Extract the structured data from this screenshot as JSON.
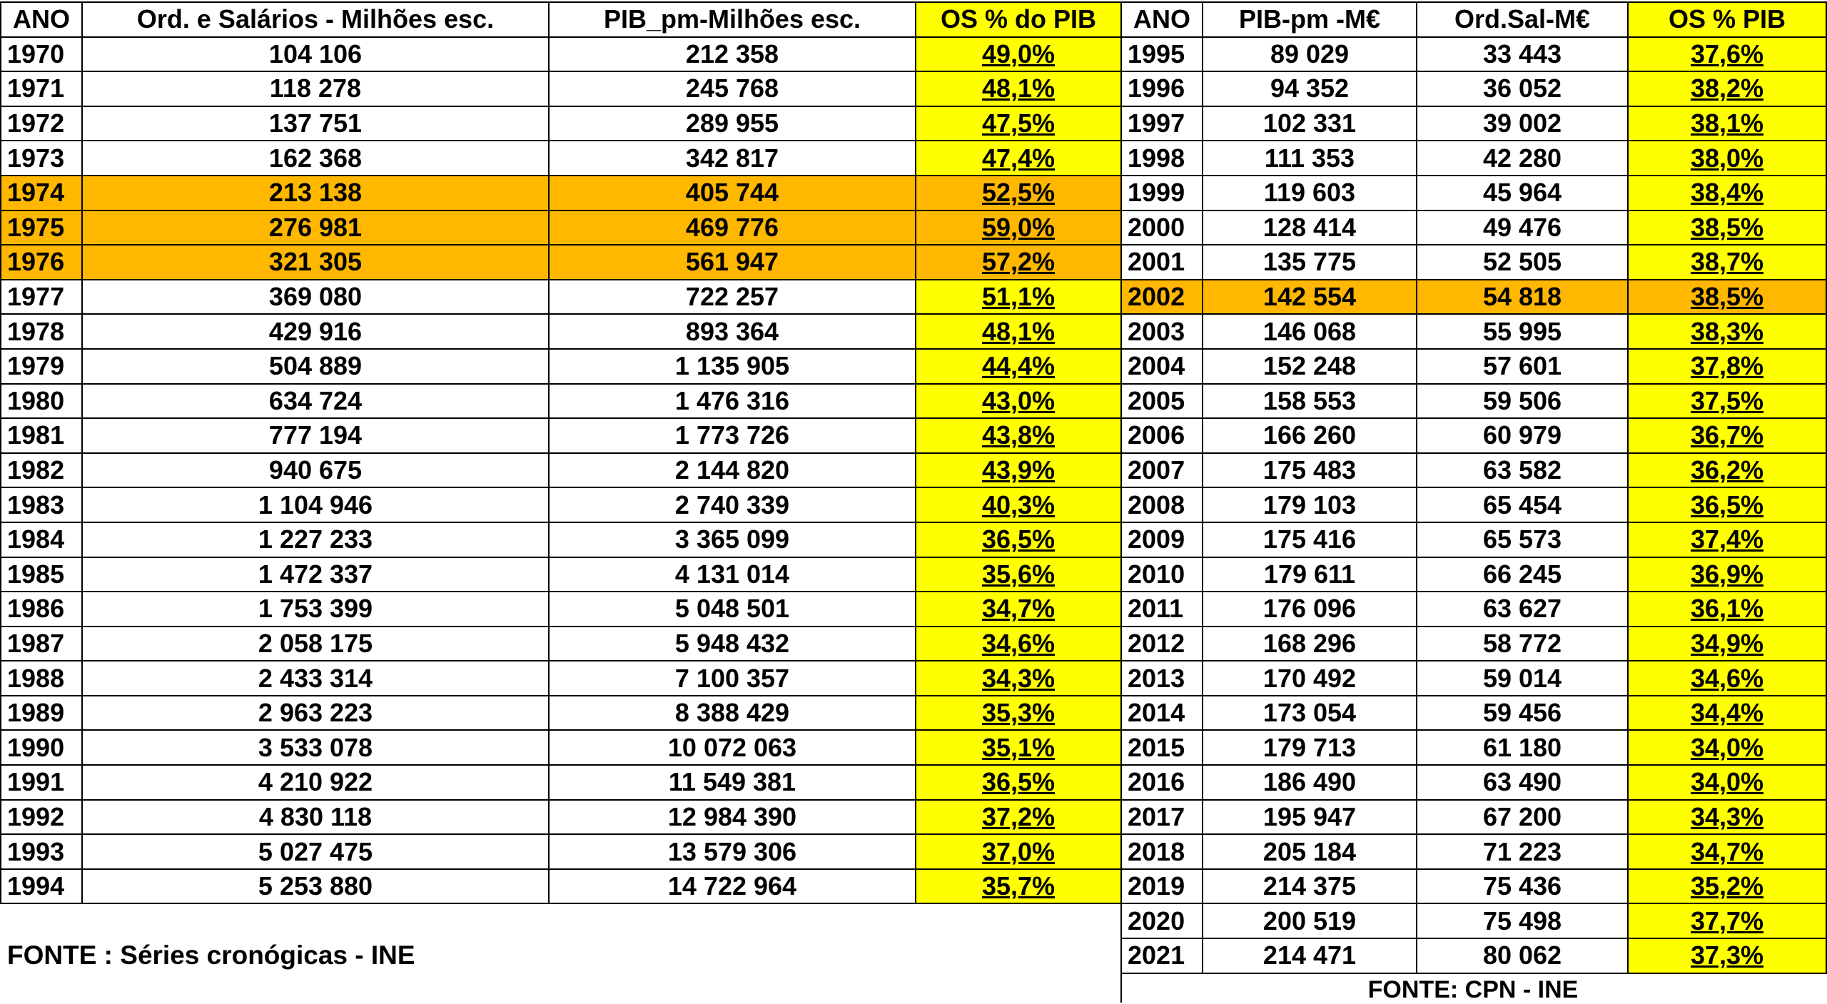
{
  "left": {
    "headers": [
      "ANO",
      "Ord. e Salários - Milhões esc.",
      "PIB_pm-Milhões esc.",
      "OS % do PIB"
    ],
    "rows": [
      [
        "1970",
        "104 106",
        "212 358",
        "49,0%"
      ],
      [
        "1971",
        "118 278",
        "245 768",
        "48,1%"
      ],
      [
        "1972",
        "137 751",
        "289 955",
        "47,5%"
      ],
      [
        "1973",
        "162 368",
        "342 817",
        "47,4%"
      ],
      [
        "1974",
        "213 138",
        "405 744",
        "52,5%"
      ],
      [
        "1975",
        "276 981",
        "469 776",
        "59,0%"
      ],
      [
        "1976",
        "321 305",
        "561 947",
        "57,2%"
      ],
      [
        "1977",
        "369 080",
        "722 257",
        "51,1%"
      ],
      [
        "1978",
        "429 916",
        "893 364",
        "48,1%"
      ],
      [
        "1979",
        "504 889",
        "1 135 905",
        "44,4%"
      ],
      [
        "1980",
        "634 724",
        "1 476 316",
        "43,0%"
      ],
      [
        "1981",
        "777 194",
        "1 773 726",
        "43,8%"
      ],
      [
        "1982",
        "940 675",
        "2 144 820",
        "43,9%"
      ],
      [
        "1983",
        "1 104 946",
        "2 740 339",
        "40,3%"
      ],
      [
        "1984",
        "1 227 233",
        "3 365 099",
        "36,5%"
      ],
      [
        "1985",
        "1 472 337",
        "4 131 014",
        "35,6%"
      ],
      [
        "1986",
        "1 753 399",
        "5 048 501",
        "34,7%"
      ],
      [
        "1987",
        "2 058 175",
        "5 948 432",
        "34,6%"
      ],
      [
        "1988",
        "2 433 314",
        "7 100 357",
        "34,3%"
      ],
      [
        "1989",
        "2 963 223",
        "8 388 429",
        "35,3%"
      ],
      [
        "1990",
        "3 533 078",
        "10 072 063",
        "35,1%"
      ],
      [
        "1991",
        "4 210 922",
        "11 549 381",
        "36,5%"
      ],
      [
        "1992",
        "4 830 118",
        "12 984 390",
        "37,2%"
      ],
      [
        "1993",
        "5 027 475",
        "13 579 306",
        "37,0%"
      ],
      [
        "1994",
        "5 253 880",
        "14 722 964",
        "35,7%"
      ]
    ],
    "highlighted_years": [
      "1974",
      "1975",
      "1976"
    ],
    "source": "FONTE : Séries cronógicas - INE"
  },
  "right": {
    "headers": [
      "ANO",
      "PIB-pm -M€",
      "Ord.Sal-M€",
      "OS % PIB"
    ],
    "rows": [
      [
        "1995",
        "89 029",
        "33 443",
        "37,6%"
      ],
      [
        "1996",
        "94 352",
        "36 052",
        "38,2%"
      ],
      [
        "1997",
        "102 331",
        "39 002",
        "38,1%"
      ],
      [
        "1998",
        "111 353",
        "42 280",
        "38,0%"
      ],
      [
        "1999",
        "119 603",
        "45 964",
        "38,4%"
      ],
      [
        "2000",
        "128 414",
        "49 476",
        "38,5%"
      ],
      [
        "2001",
        "135 775",
        "52 505",
        "38,7%"
      ],
      [
        "2002",
        "142 554",
        "54 818",
        "38,5%"
      ],
      [
        "2003",
        "146 068",
        "55 995",
        "38,3%"
      ],
      [
        "2004",
        "152 248",
        "57 601",
        "37,8%"
      ],
      [
        "2005",
        "158 553",
        "59 506",
        "37,5%"
      ],
      [
        "2006",
        "166 260",
        "60 979",
        "36,7%"
      ],
      [
        "2007",
        "175 483",
        "63 582",
        "36,2%"
      ],
      [
        "2008",
        "179 103",
        "65 454",
        "36,5%"
      ],
      [
        "2009",
        "175 416",
        "65 573",
        "37,4%"
      ],
      [
        "2010",
        "179 611",
        "66 245",
        "36,9%"
      ],
      [
        "2011",
        "176 096",
        "63 627",
        "36,1%"
      ],
      [
        "2012",
        "168 296",
        "58 772",
        "34,9%"
      ],
      [
        "2013",
        "170 492",
        "59 014",
        "34,6%"
      ],
      [
        "2014",
        "173 054",
        "59 456",
        "34,4%"
      ],
      [
        "2015",
        "179 713",
        "61 180",
        "34,0%"
      ],
      [
        "2016",
        "186 490",
        "63 490",
        "34,0%"
      ],
      [
        "2017",
        "195 947",
        "67 200",
        "34,3%"
      ],
      [
        "2018",
        "205 184",
        "71 223",
        "34,7%"
      ],
      [
        "2019",
        "214 375",
        "75 436",
        "35,2%"
      ],
      [
        "2020",
        "200 519",
        "75 498",
        "37,7%"
      ],
      [
        "2021",
        "214 471",
        "80 062",
        "37,3%"
      ]
    ],
    "highlighted_years": [
      "2002"
    ],
    "source": "FONTE: CPN - INE"
  },
  "colors": {
    "percent_cell": "#ffff00",
    "highlight_row": "#ffb700",
    "border": "#000000"
  }
}
